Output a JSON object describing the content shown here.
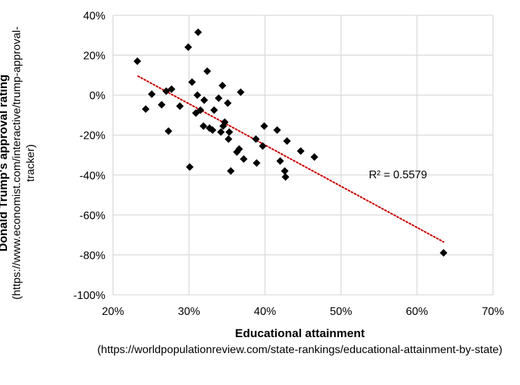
{
  "chart_data": {
    "type": "scatter",
    "xlabel": "Educational attainment",
    "xlabel_note": "(https://worldpopulationreview.com/state-rankings/educational-attainment-by-state)",
    "ylabel": "Donald Trump's approval rating",
    "ylabel_note": "(https://www.economist.com/interactive/trump-approval-tracker)",
    "xlim": [
      0.2,
      0.7
    ],
    "ylim": [
      -1.0,
      0.4
    ],
    "x_ticks": [
      0.2,
      0.3,
      0.4,
      0.5,
      0.6,
      0.7
    ],
    "y_ticks": [
      -1.0,
      -0.8,
      -0.6,
      -0.4,
      -0.2,
      0.0,
      0.2,
      0.4
    ],
    "x_tick_labels": [
      "20%",
      "30%",
      "40%",
      "50%",
      "60%",
      "70%"
    ],
    "y_tick_labels": [
      "-100%",
      "-80%",
      "-60%",
      "-40%",
      "-20%",
      "0%",
      "20%",
      "40%"
    ],
    "grid": true,
    "marker": "diamond",
    "marker_color": "#000000",
    "trendline": {
      "type": "linear",
      "color": "#cc0000",
      "style": "dotted",
      "x": [
        0.233,
        0.635
      ],
      "y": [
        0.095,
        -0.735
      ],
      "label": "R² = 0.5579"
    },
    "points": [
      {
        "x": 0.232,
        "y": 0.17
      },
      {
        "x": 0.243,
        "y": -0.07
      },
      {
        "x": 0.251,
        "y": 0.005
      },
      {
        "x": 0.264,
        "y": -0.048
      },
      {
        "x": 0.27,
        "y": 0.02
      },
      {
        "x": 0.273,
        "y": -0.18
      },
      {
        "x": 0.277,
        "y": 0.03
      },
      {
        "x": 0.288,
        "y": -0.055
      },
      {
        "x": 0.299,
        "y": 0.24
      },
      {
        "x": 0.301,
        "y": -0.36
      },
      {
        "x": 0.304,
        "y": 0.065
      },
      {
        "x": 0.309,
        "y": -0.09
      },
      {
        "x": 0.311,
        "y": 0.0
      },
      {
        "x": 0.312,
        "y": 0.315
      },
      {
        "x": 0.315,
        "y": -0.075
      },
      {
        "x": 0.319,
        "y": -0.155
      },
      {
        "x": 0.32,
        "y": -0.025
      },
      {
        "x": 0.324,
        "y": 0.12
      },
      {
        "x": 0.327,
        "y": -0.165
      },
      {
        "x": 0.331,
        "y": -0.175
      },
      {
        "x": 0.333,
        "y": -0.075
      },
      {
        "x": 0.339,
        "y": -0.015
      },
      {
        "x": 0.342,
        "y": -0.185
      },
      {
        "x": 0.344,
        "y": 0.048
      },
      {
        "x": 0.345,
        "y": -0.155
      },
      {
        "x": 0.347,
        "y": -0.135
      },
      {
        "x": 0.351,
        "y": -0.04
      },
      {
        "x": 0.352,
        "y": -0.22
      },
      {
        "x": 0.353,
        "y": -0.185
      },
      {
        "x": 0.355,
        "y": -0.38
      },
      {
        "x": 0.363,
        "y": -0.285
      },
      {
        "x": 0.366,
        "y": -0.27
      },
      {
        "x": 0.368,
        "y": 0.015
      },
      {
        "x": 0.372,
        "y": -0.32
      },
      {
        "x": 0.388,
        "y": -0.22
      },
      {
        "x": 0.389,
        "y": -0.34
      },
      {
        "x": 0.397,
        "y": -0.255
      },
      {
        "x": 0.399,
        "y": -0.155
      },
      {
        "x": 0.416,
        "y": -0.175
      },
      {
        "x": 0.42,
        "y": -0.33
      },
      {
        "x": 0.426,
        "y": -0.38
      },
      {
        "x": 0.427,
        "y": -0.41
      },
      {
        "x": 0.429,
        "y": -0.23
      },
      {
        "x": 0.447,
        "y": -0.28
      },
      {
        "x": 0.465,
        "y": -0.31
      },
      {
        "x": 0.635,
        "y": -0.79
      }
    ]
  }
}
